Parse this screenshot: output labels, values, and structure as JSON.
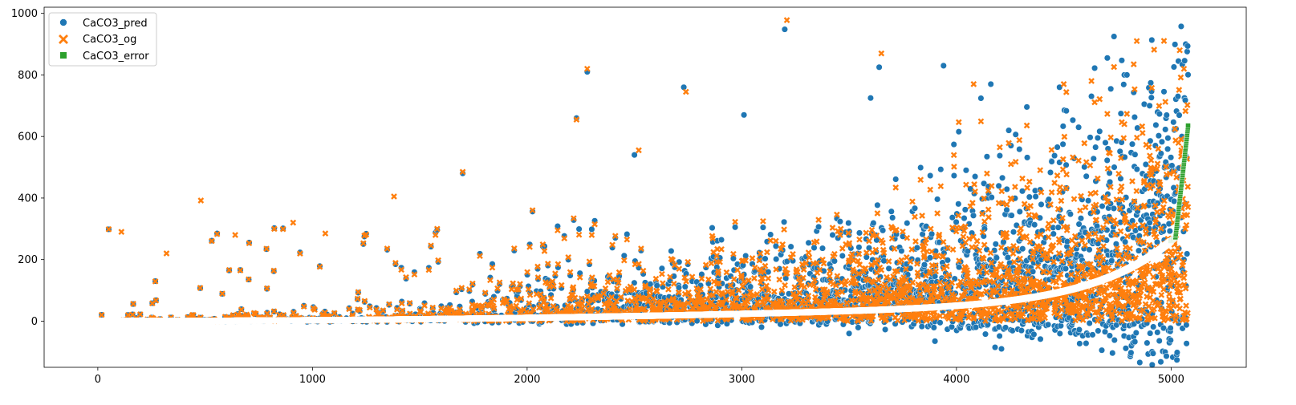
{
  "chart_data": {
    "type": "scatter",
    "title": "",
    "xlabel": "",
    "ylabel": "",
    "xlim": [
      -250,
      5350
    ],
    "ylim": [
      -150,
      1020
    ],
    "x_ticks": [
      0,
      1000,
      2000,
      3000,
      4000,
      5000
    ],
    "y_ticks": [
      0,
      200,
      400,
      600,
      800,
      1000
    ],
    "grid": false,
    "legend_position": "top-left",
    "n_points": 5080,
    "series": [
      {
        "name": "CaCO3_pred",
        "marker": "circle",
        "color": "#1f77b4",
        "sample_points": [
          [
            2280,
            810
          ],
          [
            3200,
            948
          ],
          [
            3640,
            825
          ],
          [
            3940,
            830
          ],
          [
            3600,
            725
          ],
          [
            3010,
            670
          ],
          [
            2730,
            760
          ],
          [
            4160,
            770
          ],
          [
            4480,
            760
          ],
          [
            4180,
            -85
          ],
          [
            4210,
            -90
          ],
          [
            3900,
            -65
          ],
          [
            4090,
            -20
          ],
          [
            3500,
            -40
          ],
          [
            2500,
            540
          ],
          [
            1700,
            480
          ],
          [
            2230,
            660
          ],
          [
            4900,
            700
          ],
          [
            5050,
            600
          ],
          [
            5060,
            200
          ]
        ]
      },
      {
        "name": "CaCO3_og",
        "marker": "x",
        "color": "#ff7f0e",
        "sample_points": [
          [
            3210,
            978
          ],
          [
            2280,
            820
          ],
          [
            3650,
            870
          ],
          [
            4840,
            910
          ],
          [
            5040,
            880
          ],
          [
            4080,
            770
          ],
          [
            2740,
            745
          ],
          [
            2230,
            655
          ],
          [
            110,
            290
          ],
          [
            480,
            392
          ],
          [
            910,
            320
          ],
          [
            1380,
            405
          ],
          [
            1700,
            485
          ],
          [
            1060,
            285
          ],
          [
            320,
            220
          ],
          [
            640,
            280
          ],
          [
            2520,
            555
          ],
          [
            4500,
            770
          ],
          [
            5060,
            820
          ],
          [
            5070,
            50
          ]
        ]
      },
      {
        "name": "CaCO3_error",
        "marker": "square",
        "color": "#2ca02c",
        "formula": "error increases monotonically with sorted index"
      }
    ]
  }
}
